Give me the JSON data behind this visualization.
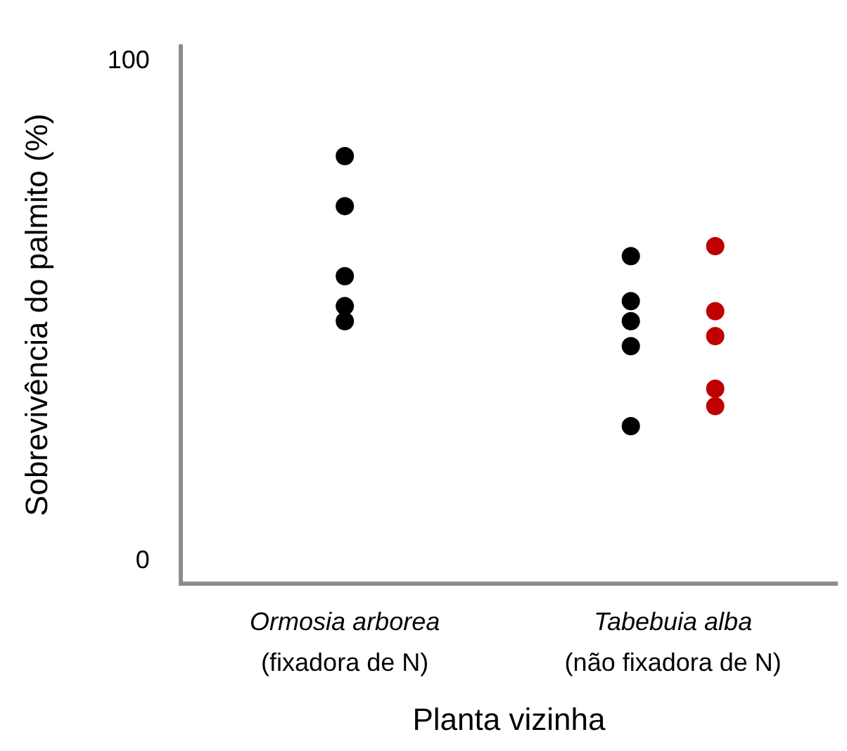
{
  "chart_data": {
    "type": "scatter",
    "ylabel": "Sobrevivência do palmito (%)",
    "xlabel": "Planta vizinha",
    "categories": [
      "Ormosia arborea\n(fixadora de N)",
      "Tabebuia alba\n(não fixadora de N)"
    ],
    "series": [
      {
        "color": "#000000",
        "x": [
          "Ormosia arborea\n(fixadora de N)",
          "Ormosia arborea\n(fixadora de N)",
          "Ormosia arborea\n(fixadora de N)",
          "Ormosia arborea\n(fixadora de N)",
          "Ormosia arborea\n(fixadora de N)",
          "Tabebuia alba\n(não fixadora de N)",
          "Tabebuia alba\n(não fixadora de N)",
          "Tabebuia alba\n(não fixadora de N)",
          "Tabebuia alba\n(não fixadora de N)",
          "Tabebuia alba\n(não fixadora de N)"
        ],
        "values": [
          81,
          71,
          57,
          51,
          48,
          61,
          52,
          48,
          43,
          27
        ]
      },
      {
        "color": "#c00000",
        "x": [
          "Tabebuia alba\n(não fixadora de N)",
          "Tabebuia alba\n(não fixadora de N)",
          "Tabebuia alba\n(não fixadora de N)",
          "Tabebuia alba\n(não fixadora de N)",
          "Tabebuia alba\n(não fixadora de N)"
        ],
        "values": [
          63,
          50,
          45,
          34.5,
          31
        ]
      }
    ],
    "ylim": [
      -4.5,
      103
    ],
    "yticks": [
      0,
      100
    ],
    "grid": false,
    "legend": false,
    "marker": "circle"
  }
}
